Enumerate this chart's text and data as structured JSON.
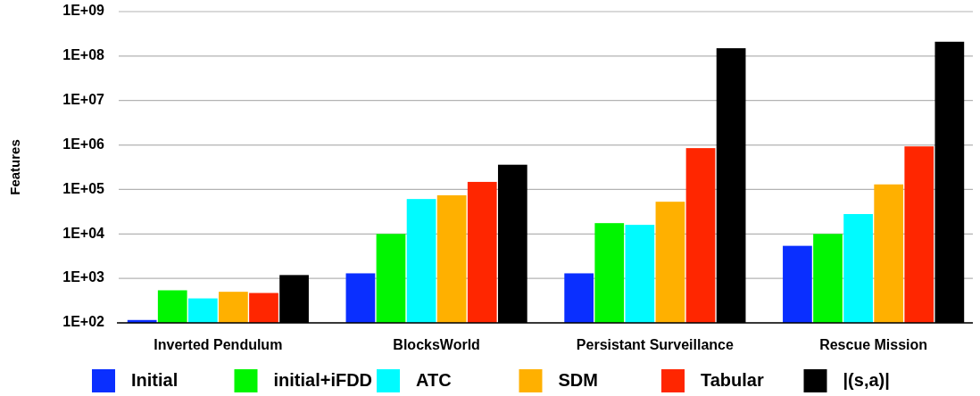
{
  "chart_data": {
    "type": "bar",
    "ylabel": "Features",
    "log": true,
    "grid": "y",
    "legend": "bottom",
    "categories": [
      "Inverted Pendulum",
      "BlocksWorld",
      "Persistant Surveillance",
      "Rescue Mission"
    ],
    "ylim": [
      100,
      1000000000
    ],
    "yticks": [
      {
        "value": 100,
        "label": "1E+02"
      },
      {
        "value": 1000,
        "label": "1E+03"
      },
      {
        "value": 10000,
        "label": "1E+04"
      },
      {
        "value": 100000,
        "label": "1E+05"
      },
      {
        "value": 1000000,
        "label": "1E+06"
      },
      {
        "value": 10000000,
        "label": "1E+07"
      },
      {
        "value": 100000000,
        "label": "1E+08"
      },
      {
        "value": 1000000000,
        "label": "1E+09"
      }
    ],
    "series": [
      {
        "name": "Initial",
        "color": "#0a2fff",
        "values": [
          116,
          1300,
          1300,
          5400
        ]
      },
      {
        "name": "initial+iFDD",
        "color": "#00f500",
        "values": [
          540,
          10000,
          17500,
          10000
        ]
      },
      {
        "name": "ATC",
        "color": "#00fbff",
        "values": [
          355,
          61000,
          16000,
          28000
        ]
      },
      {
        "name": "SDM",
        "color": "#ffb000",
        "values": [
          500,
          74000,
          53000,
          130000
        ]
      },
      {
        "name": "Tabular",
        "color": "#ff2600",
        "values": [
          470,
          148000,
          850000,
          930000
        ]
      },
      {
        "name": "|(s,a)|",
        "color": "#000000",
        "values": [
          1190,
          360000,
          150000000,
          210000000
        ]
      }
    ]
  }
}
